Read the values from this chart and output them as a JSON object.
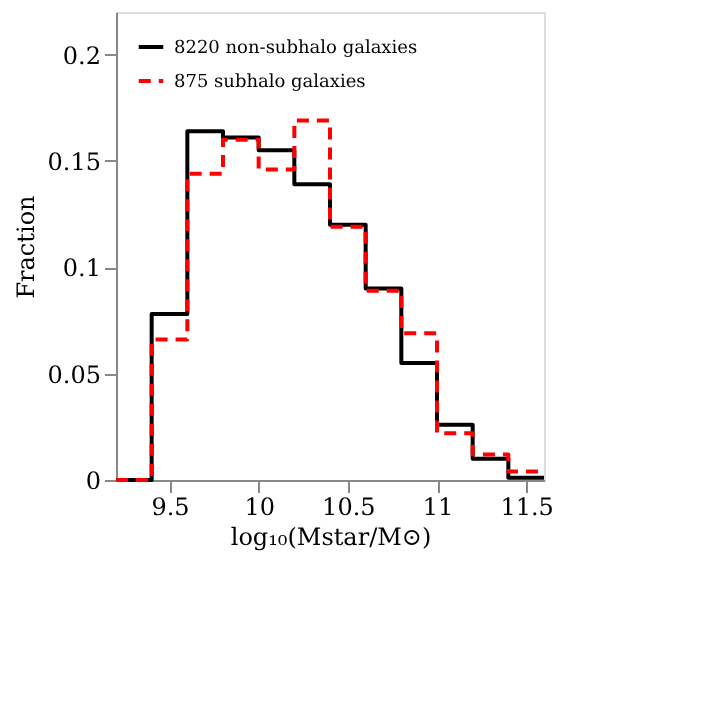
{
  "chart_data": {
    "type": "histogram",
    "xlabel": "log₁₀(Mstar/M⊙)",
    "ylabel": "Fraction",
    "bins": [
      9.2,
      9.4,
      9.6,
      9.8,
      10.0,
      10.2,
      10.4,
      10.6,
      10.8,
      11.0,
      11.2,
      11.4,
      11.6
    ],
    "series": [
      {
        "name": "8220 non-subhalo galaxies",
        "color": "#000000",
        "line_style": "solid",
        "values": [
          0,
          0.078,
          0.164,
          0.161,
          0.155,
          0.139,
          0.12,
          0.09,
          0.055,
          0.026,
          0.01,
          0.001
        ]
      },
      {
        "name": "875 subhalo galaxies",
        "color": "#ff0000",
        "line_style": "dashed",
        "values": [
          0,
          0.066,
          0.144,
          0.16,
          0.146,
          0.169,
          0.119,
          0.089,
          0.069,
          0.022,
          0.012,
          0.004
        ]
      }
    ],
    "xlim": [
      9.2,
      11.6
    ],
    "xticks": [
      9.5,
      10,
      10.5,
      11,
      11.5
    ],
    "ylim": [
      0,
      0.22
    ],
    "yticks": [
      0,
      0.05,
      0.1,
      0.15,
      0.2
    ],
    "grid": false,
    "legend": "top left"
  }
}
